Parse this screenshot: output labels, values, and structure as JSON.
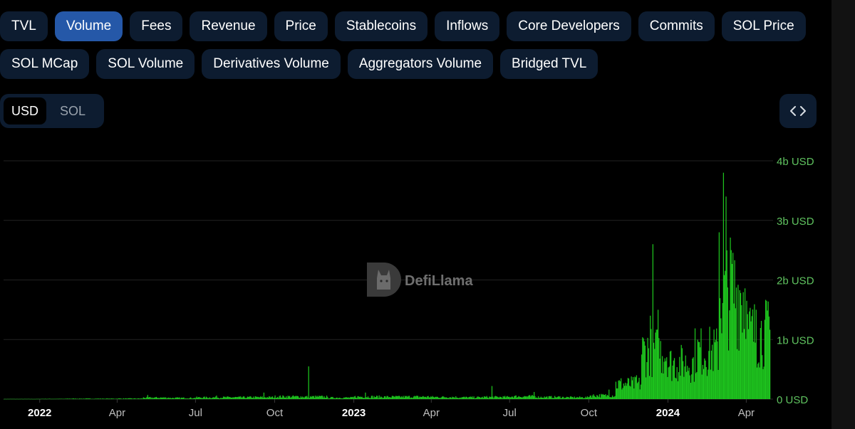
{
  "tabs_row1": [
    "TVL",
    "Volume",
    "Fees",
    "Revenue",
    "Price",
    "Stablecoins",
    "Inflows",
    "Core Developers",
    "Commits",
    "SOL Price"
  ],
  "tabs_row2": [
    "SOL MCap",
    "SOL Volume",
    "Derivatives Volume",
    "Aggregators Volume",
    "Bridged TVL"
  ],
  "active_tab": "Volume",
  "denomination": {
    "options": [
      "USD",
      "SOL"
    ],
    "selected": "USD"
  },
  "embed_icon": "code-brackets-icon",
  "watermark": {
    "icon": "llama-logo-icon",
    "text": "DefiLlama"
  },
  "colors": {
    "bar": "#1ec31e",
    "axis_label": "#5fc25f",
    "tab_bg": "#0d1c30",
    "tab_active": "#2558a8"
  },
  "chart_data": {
    "type": "bar",
    "title": "",
    "x_start": "2021-11-20",
    "x_end": "2024-04-28",
    "x_ticks": [
      "2022",
      "Apr",
      "Jul",
      "Oct",
      "2023",
      "Apr",
      "Jul",
      "Oct",
      "2024",
      "Apr"
    ],
    "y_ticks": [
      "0 USD",
      "1b USD",
      "2b USD",
      "3b USD",
      "4b USD"
    ],
    "ylim": [
      0,
      4000000000
    ],
    "y_axis_side": "right",
    "grid": true,
    "series": [
      {
        "unit": "USD",
        "monthly_typical": [
          [
            "2022-01",
            5000000
          ],
          [
            "2022-02",
            8000000
          ],
          [
            "2022-03",
            8000000
          ],
          [
            "2022-04",
            10000000
          ],
          [
            "2022-05",
            25000000
          ],
          [
            "2022-06",
            20000000
          ],
          [
            "2022-07",
            28000000
          ],
          [
            "2022-08",
            30000000
          ],
          [
            "2022-09",
            32000000
          ],
          [
            "2022-10",
            42000000
          ],
          [
            "2022-11",
            40000000
          ],
          [
            "2022-12",
            25000000
          ],
          [
            "2023-01",
            40000000
          ],
          [
            "2023-02",
            38000000
          ],
          [
            "2023-03",
            40000000
          ],
          [
            "2023-04",
            35000000
          ],
          [
            "2023-05",
            30000000
          ],
          [
            "2023-06",
            35000000
          ],
          [
            "2023-07",
            45000000
          ],
          [
            "2023-08",
            35000000
          ],
          [
            "2023-09",
            30000000
          ],
          [
            "2023-10",
            60000000
          ],
          [
            "2023-11",
            250000000
          ],
          [
            "2023-12",
            800000000
          ],
          [
            "2024-01",
            600000000
          ],
          [
            "2024-02",
            800000000
          ],
          [
            "2024-03",
            1800000000
          ],
          [
            "2024-04",
            1100000000
          ]
        ],
        "peaks": [
          [
            "2022-05-06",
            70000000
          ],
          [
            "2022-07-25",
            60000000
          ],
          [
            "2022-09-18",
            110000000
          ],
          [
            "2022-11-09",
            550000000
          ],
          [
            "2023-01-14",
            110000000
          ],
          [
            "2023-06-10",
            220000000
          ],
          [
            "2023-07-29",
            120000000
          ],
          [
            "2023-10-24",
            160000000
          ],
          [
            "2023-11-25",
            400000000
          ],
          [
            "2023-12-11",
            1400000000
          ],
          [
            "2023-12-14",
            2600000000
          ],
          [
            "2023-12-20",
            1500000000
          ],
          [
            "2024-02-29",
            2800000000
          ],
          [
            "2024-03-05",
            3800000000
          ],
          [
            "2024-03-08",
            3400000000
          ],
          [
            "2024-03-14",
            2500000000
          ],
          [
            "2024-04-01",
            1650000000
          ],
          [
            "2024-04-12",
            1500000000
          ],
          [
            "2024-04-24",
            1650000000
          ]
        ]
      }
    ]
  }
}
